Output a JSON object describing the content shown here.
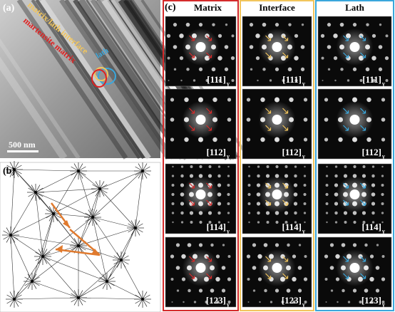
{
  "panels": {
    "a": {
      "label": "(a)",
      "annotations": {
        "matrix": "martensite matrix",
        "interface": "matrix/lath interface",
        "lath": "lath"
      },
      "scale_bar": "500 nm"
    },
    "b": {
      "label": "(b)"
    },
    "c": {
      "label": "(c)",
      "columns": [
        {
          "name": "Matrix",
          "color": "#d42a2a",
          "tiles": [
            {
              "zone": "[111]",
              "sub": "γ"
            },
            {
              "zone": "[112]",
              "sub": "γ"
            },
            {
              "zone": "[114]",
              "sub": "γ"
            },
            {
              "zone": "[123]",
              "sub": "γ"
            }
          ]
        },
        {
          "name": "Interface",
          "color": "#f2c55c",
          "tiles": [
            {
              "zone": "[111]",
              "sub": "γ"
            },
            {
              "zone": "[112]",
              "sub": "γ"
            },
            {
              "zone": "[114]",
              "sub": "γ"
            },
            {
              "zone": "[123]",
              "sub": "γ"
            }
          ]
        },
        {
          "name": "Lath",
          "color": "#3aa7dc",
          "tiles": [
            {
              "zone": "[111]",
              "sub": "γ"
            },
            {
              "zone": "[112]",
              "sub": "γ"
            },
            {
              "zone": "[114]",
              "sub": "γ"
            },
            {
              "zone": "[123]",
              "sub": "γ"
            }
          ]
        }
      ]
    }
  }
}
